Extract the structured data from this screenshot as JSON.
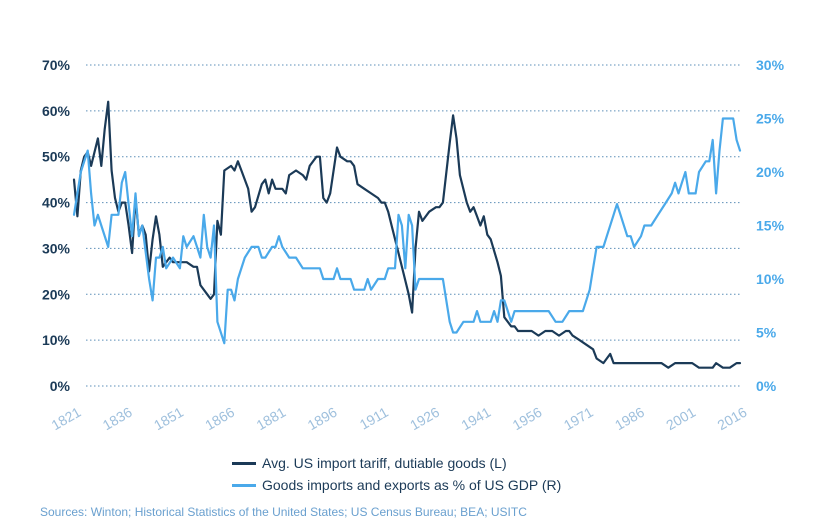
{
  "chart_data": {
    "type": "line",
    "title": "",
    "y_left": {
      "ticks": [
        "0%",
        "10%",
        "20%",
        "30%",
        "40%",
        "50%",
        "60%",
        "70%"
      ],
      "ylim": [
        0,
        70
      ]
    },
    "y_right": {
      "ticks": [
        "0%",
        "5%",
        "10%",
        "15%",
        "20%",
        "25%",
        "30%"
      ],
      "ylim": [
        0,
        30
      ]
    },
    "x_ticks": [
      "1821",
      "1836",
      "1851",
      "1866",
      "1881",
      "1896",
      "1911",
      "1926",
      "1941",
      "1956",
      "1971",
      "1986",
      "2001",
      "2016"
    ],
    "xlim": [
      1821,
      2016
    ],
    "grid": true,
    "series": [
      {
        "name": "Avg. US import tariff, dutiable goods (L)",
        "axis": "left",
        "color": "#1b3a57",
        "points": [
          [
            1821,
            45
          ],
          [
            1822,
            37
          ],
          [
            1823,
            47
          ],
          [
            1824,
            50
          ],
          [
            1825,
            51
          ],
          [
            1826,
            48
          ],
          [
            1828,
            54
          ],
          [
            1829,
            48
          ],
          [
            1830,
            56
          ],
          [
            1831,
            62
          ],
          [
            1832,
            47
          ],
          [
            1833,
            41
          ],
          [
            1834,
            38
          ],
          [
            1835,
            40
          ],
          [
            1836,
            40
          ],
          [
            1837,
            35
          ],
          [
            1838,
            29
          ],
          [
            1839,
            41
          ],
          [
            1840,
            33
          ],
          [
            1841,
            35
          ],
          [
            1842,
            33
          ],
          [
            1843,
            25
          ],
          [
            1844,
            32
          ],
          [
            1845,
            37
          ],
          [
            1846,
            33
          ],
          [
            1847,
            26
          ],
          [
            1849,
            28
          ],
          [
            1850,
            27
          ],
          [
            1852,
            27
          ],
          [
            1854,
            27
          ],
          [
            1856,
            26
          ],
          [
            1857,
            26
          ],
          [
            1858,
            22
          ],
          [
            1860,
            20
          ],
          [
            1861,
            19
          ],
          [
            1862,
            20
          ],
          [
            1863,
            36
          ],
          [
            1864,
            33
          ],
          [
            1865,
            47
          ],
          [
            1867,
            48
          ],
          [
            1868,
            47
          ],
          [
            1869,
            49
          ],
          [
            1870,
            47
          ],
          [
            1872,
            43
          ],
          [
            1873,
            38
          ],
          [
            1874,
            39
          ],
          [
            1876,
            44
          ],
          [
            1877,
            45
          ],
          [
            1878,
            42
          ],
          [
            1879,
            45
          ],
          [
            1880,
            43
          ],
          [
            1882,
            43
          ],
          [
            1883,
            42
          ],
          [
            1884,
            46
          ],
          [
            1886,
            47
          ],
          [
            1888,
            46
          ],
          [
            1889,
            45
          ],
          [
            1890,
            48
          ],
          [
            1892,
            50
          ],
          [
            1893,
            50
          ],
          [
            1894,
            41
          ],
          [
            1895,
            40
          ],
          [
            1896,
            42
          ],
          [
            1898,
            52
          ],
          [
            1899,
            50
          ],
          [
            1901,
            49
          ],
          [
            1902,
            49
          ],
          [
            1903,
            48
          ],
          [
            1904,
            44
          ],
          [
            1906,
            43
          ],
          [
            1908,
            42
          ],
          [
            1910,
            41
          ],
          [
            1911,
            40
          ],
          [
            1912,
            40
          ],
          [
            1913,
            38
          ],
          [
            1914,
            35
          ],
          [
            1916,
            29
          ],
          [
            1918,
            23
          ],
          [
            1919,
            20
          ],
          [
            1920,
            16
          ],
          [
            1921,
            30
          ],
          [
            1922,
            38
          ],
          [
            1923,
            36
          ],
          [
            1925,
            38
          ],
          [
            1927,
            39
          ],
          [
            1928,
            39
          ],
          [
            1929,
            40
          ],
          [
            1931,
            53
          ],
          [
            1932,
            59
          ],
          [
            1933,
            54
          ],
          [
            1934,
            46
          ],
          [
            1936,
            40
          ],
          [
            1937,
            38
          ],
          [
            1938,
            39
          ],
          [
            1939,
            37
          ],
          [
            1940,
            35
          ],
          [
            1941,
            37
          ],
          [
            1942,
            33
          ],
          [
            1943,
            32
          ],
          [
            1945,
            27
          ],
          [
            1946,
            24
          ],
          [
            1947,
            15
          ],
          [
            1949,
            13
          ],
          [
            1950,
            13
          ],
          [
            1951,
            12
          ],
          [
            1953,
            12
          ],
          [
            1955,
            12
          ],
          [
            1957,
            11
          ],
          [
            1959,
            12
          ],
          [
            1960,
            12
          ],
          [
            1961,
            12
          ],
          [
            1963,
            11
          ],
          [
            1965,
            12
          ],
          [
            1966,
            12
          ],
          [
            1967,
            11
          ],
          [
            1969,
            10
          ],
          [
            1971,
            9
          ],
          [
            1973,
            8
          ],
          [
            1974,
            6
          ],
          [
            1976,
            5
          ],
          [
            1977,
            6
          ],
          [
            1978,
            7
          ],
          [
            1979,
            5
          ],
          [
            1981,
            5
          ],
          [
            1983,
            5
          ],
          [
            1985,
            5
          ],
          [
            1987,
            5
          ],
          [
            1989,
            5
          ],
          [
            1991,
            5
          ],
          [
            1993,
            5
          ],
          [
            1995,
            4
          ],
          [
            1997,
            5
          ],
          [
            2000,
            5
          ],
          [
            2002,
            5
          ],
          [
            2004,
            4
          ],
          [
            2006,
            4
          ],
          [
            2008,
            4
          ],
          [
            2009,
            5
          ],
          [
            2011,
            4
          ],
          [
            2013,
            4
          ],
          [
            2015,
            5
          ],
          [
            2016,
            5
          ]
        ]
      },
      {
        "name": "Goods imports and exports as % of US GDP (R)",
        "axis": "right",
        "color": "#4aa9ea",
        "points": [
          [
            1821,
            16
          ],
          [
            1822,
            18
          ],
          [
            1823,
            20
          ],
          [
            1825,
            22
          ],
          [
            1826,
            18
          ],
          [
            1827,
            15
          ],
          [
            1828,
            16
          ],
          [
            1829,
            15
          ],
          [
            1831,
            13
          ],
          [
            1832,
            16
          ],
          [
            1833,
            16
          ],
          [
            1834,
            16
          ],
          [
            1835,
            19
          ],
          [
            1836,
            20
          ],
          [
            1837,
            17
          ],
          [
            1838,
            14
          ],
          [
            1839,
            18
          ],
          [
            1840,
            14
          ],
          [
            1841,
            15
          ],
          [
            1843,
            10
          ],
          [
            1844,
            8
          ],
          [
            1845,
            12
          ],
          [
            1846,
            12
          ],
          [
            1847,
            13
          ],
          [
            1848,
            11
          ],
          [
            1850,
            12
          ],
          [
            1852,
            11
          ],
          [
            1853,
            14
          ],
          [
            1854,
            13
          ],
          [
            1856,
            14
          ],
          [
            1857,
            13
          ],
          [
            1858,
            12
          ],
          [
            1859,
            16
          ],
          [
            1860,
            13
          ],
          [
            1861,
            12
          ],
          [
            1862,
            15
          ],
          [
            1863,
            6
          ],
          [
            1865,
            4
          ],
          [
            1866,
            9
          ],
          [
            1867,
            9
          ],
          [
            1868,
            8
          ],
          [
            1869,
            10
          ],
          [
            1871,
            12
          ],
          [
            1873,
            13
          ],
          [
            1875,
            13
          ],
          [
            1876,
            12
          ],
          [
            1877,
            12
          ],
          [
            1879,
            13
          ],
          [
            1880,
            13
          ],
          [
            1881,
            14
          ],
          [
            1882,
            13
          ],
          [
            1884,
            12
          ],
          [
            1886,
            12
          ],
          [
            1888,
            11
          ],
          [
            1890,
            11
          ],
          [
            1891,
            11
          ],
          [
            1893,
            11
          ],
          [
            1894,
            10
          ],
          [
            1896,
            10
          ],
          [
            1897,
            10
          ],
          [
            1898,
            11
          ],
          [
            1899,
            10
          ],
          [
            1901,
            10
          ],
          [
            1902,
            10
          ],
          [
            1903,
            9
          ],
          [
            1905,
            9
          ],
          [
            1906,
            9
          ],
          [
            1907,
            10
          ],
          [
            1908,
            9
          ],
          [
            1910,
            10
          ],
          [
            1912,
            10
          ],
          [
            1913,
            11
          ],
          [
            1915,
            11
          ],
          [
            1916,
            16
          ],
          [
            1917,
            15
          ],
          [
            1918,
            11
          ],
          [
            1919,
            16
          ],
          [
            1920,
            15
          ],
          [
            1921,
            9
          ],
          [
            1922,
            10
          ],
          [
            1923,
            10
          ],
          [
            1925,
            10
          ],
          [
            1926,
            10
          ],
          [
            1927,
            10
          ],
          [
            1928,
            10
          ],
          [
            1929,
            10
          ],
          [
            1930,
            8
          ],
          [
            1931,
            6
          ],
          [
            1932,
            5
          ],
          [
            1933,
            5
          ],
          [
            1935,
            6
          ],
          [
            1937,
            6
          ],
          [
            1938,
            6
          ],
          [
            1939,
            7
          ],
          [
            1940,
            6
          ],
          [
            1941,
            6
          ],
          [
            1942,
            6
          ],
          [
            1943,
            6
          ],
          [
            1944,
            7
          ],
          [
            1945,
            6
          ],
          [
            1946,
            8
          ],
          [
            1947,
            8
          ],
          [
            1948,
            7
          ],
          [
            1949,
            6
          ],
          [
            1950,
            7
          ],
          [
            1951,
            7
          ],
          [
            1953,
            7
          ],
          [
            1955,
            7
          ],
          [
            1956,
            7
          ],
          [
            1957,
            7
          ],
          [
            1958,
            7
          ],
          [
            1960,
            7
          ],
          [
            1962,
            6
          ],
          [
            1964,
            6
          ],
          [
            1966,
            7
          ],
          [
            1968,
            7
          ],
          [
            1970,
            7
          ],
          [
            1971,
            8
          ],
          [
            1972,
            9
          ],
          [
            1973,
            11
          ],
          [
            1974,
            13
          ],
          [
            1976,
            13
          ],
          [
            1977,
            14
          ],
          [
            1979,
            16
          ],
          [
            1980,
            17
          ],
          [
            1981,
            16
          ],
          [
            1983,
            14
          ],
          [
            1984,
            14
          ],
          [
            1985,
            13
          ],
          [
            1987,
            14
          ],
          [
            1988,
            15
          ],
          [
            1990,
            15
          ],
          [
            1992,
            16
          ],
          [
            1994,
            17
          ],
          [
            1996,
            18
          ],
          [
            1997,
            19
          ],
          [
            1998,
            18
          ],
          [
            1999,
            19
          ],
          [
            2000,
            20
          ],
          [
            2001,
            18
          ],
          [
            2002,
            18
          ],
          [
            2003,
            18
          ],
          [
            2004,
            20
          ],
          [
            2006,
            21
          ],
          [
            2007,
            21
          ],
          [
            2008,
            23
          ],
          [
            2009,
            18
          ],
          [
            2010,
            22
          ],
          [
            2011,
            25
          ],
          [
            2013,
            25
          ],
          [
            2014,
            25
          ],
          [
            2015,
            23
          ],
          [
            2016,
            22
          ]
        ]
      }
    ],
    "source": "Sources: Winton; Historical Statistics of the United States; US Census Bureau; BEA; USITC"
  }
}
